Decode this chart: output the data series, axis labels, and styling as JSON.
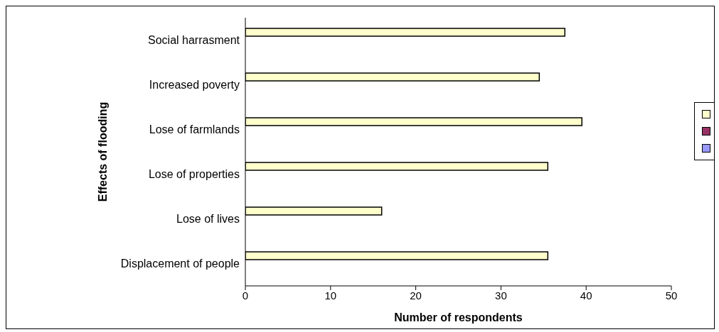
{
  "chart_data": {
    "type": "bar",
    "orientation": "horizontal",
    "xlabel": "Number of respondents",
    "ylabel": "Effects of flooding",
    "categories": [
      "Social harrasment",
      "Increased poverty",
      "Lose of farmlands",
      "Lose of properties",
      "Lose of lives",
      "Displacement of people"
    ],
    "series": [
      {
        "color": "#ffffcc",
        "values": [
          37.5,
          34.5,
          39.5,
          35.5,
          16,
          35.5
        ]
      },
      {
        "color": "#993366",
        "values": [
          null,
          null,
          null,
          null,
          null,
          null
        ]
      },
      {
        "color": "#9999ff",
        "values": [
          null,
          null,
          null,
          null,
          null,
          null
        ]
      }
    ],
    "xlim": [
      0,
      50
    ],
    "xticks": [
      0,
      10,
      20,
      30,
      40,
      50
    ]
  }
}
